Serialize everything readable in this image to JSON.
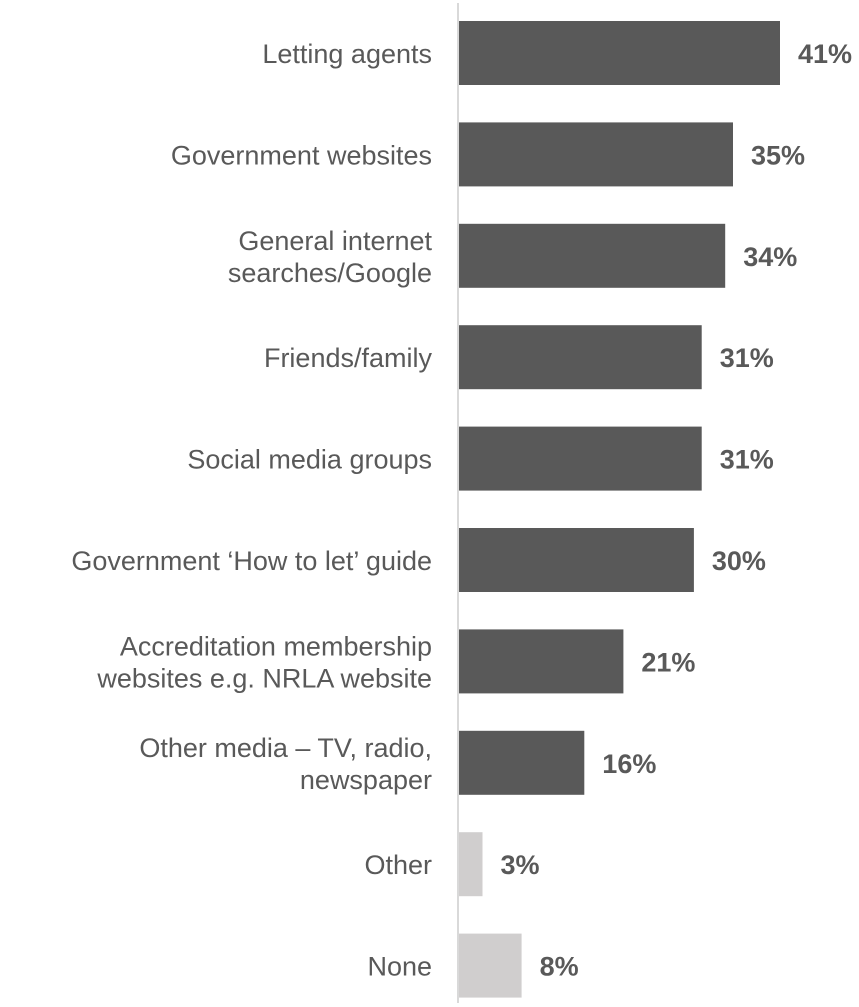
{
  "chart_data": {
    "type": "bar",
    "orientation": "horizontal",
    "categories": [
      [
        "Letting agents"
      ],
      [
        "Government websites"
      ],
      [
        "General internet",
        "searches/Google"
      ],
      [
        "Friends/family"
      ],
      [
        "Social media groups"
      ],
      [
        "Government ‘How to let’ guide"
      ],
      [
        "Accreditation membership",
        "websites e.g. NRLA website"
      ],
      [
        "Other media – TV, radio,",
        "newspaper"
      ],
      [
        "Other"
      ],
      [
        "None"
      ]
    ],
    "values": [
      41,
      35,
      34,
      31,
      31,
      30,
      21,
      16,
      3,
      8
    ],
    "value_labels": [
      "41%",
      "35%",
      "34%",
      "31%",
      "31%",
      "30%",
      "21%",
      "16%",
      "3%",
      "8%"
    ],
    "unit": "%",
    "xlim": [
      0,
      41
    ],
    "colors": {
      "primary": "#595959",
      "secondary": "#d0cece",
      "axis": "#d9d9d9",
      "text": "#595959"
    },
    "bar_color_keys": [
      "primary",
      "primary",
      "primary",
      "primary",
      "primary",
      "primary",
      "primary",
      "primary",
      "secondary",
      "secondary"
    ],
    "grid": false,
    "legend": "none"
  }
}
